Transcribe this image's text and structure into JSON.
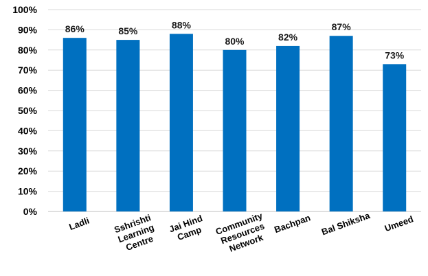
{
  "chart_data": {
    "type": "bar",
    "title": "",
    "xlabel": "",
    "ylabel": "",
    "categories": [
      [
        "Ladli"
      ],
      [
        "Sshrishti",
        "Learning",
        "Centre"
      ],
      [
        "Jai Hind",
        "Camp"
      ],
      [
        "Community",
        "Resources",
        "Network"
      ],
      [
        "Bachpan"
      ],
      [
        "Bal Shiksha"
      ],
      [
        "Umeed"
      ]
    ],
    "values": [
      86,
      85,
      88,
      80,
      82,
      87,
      73
    ],
    "data_labels": [
      "86%",
      "85%",
      "88%",
      "80%",
      "82%",
      "87%",
      "73%"
    ],
    "ylim": [
      0,
      100
    ],
    "y_ticks": [
      0,
      10,
      20,
      30,
      40,
      50,
      60,
      70,
      80,
      90,
      100
    ],
    "y_tick_labels": [
      "0%",
      "10%",
      "20%",
      "30%",
      "40%",
      "50%",
      "60%",
      "70%",
      "80%",
      "90%",
      "100%"
    ],
    "grid": true,
    "legend": "none",
    "bar_color": "#0070C0",
    "grid_color": "#d9d9d9"
  }
}
